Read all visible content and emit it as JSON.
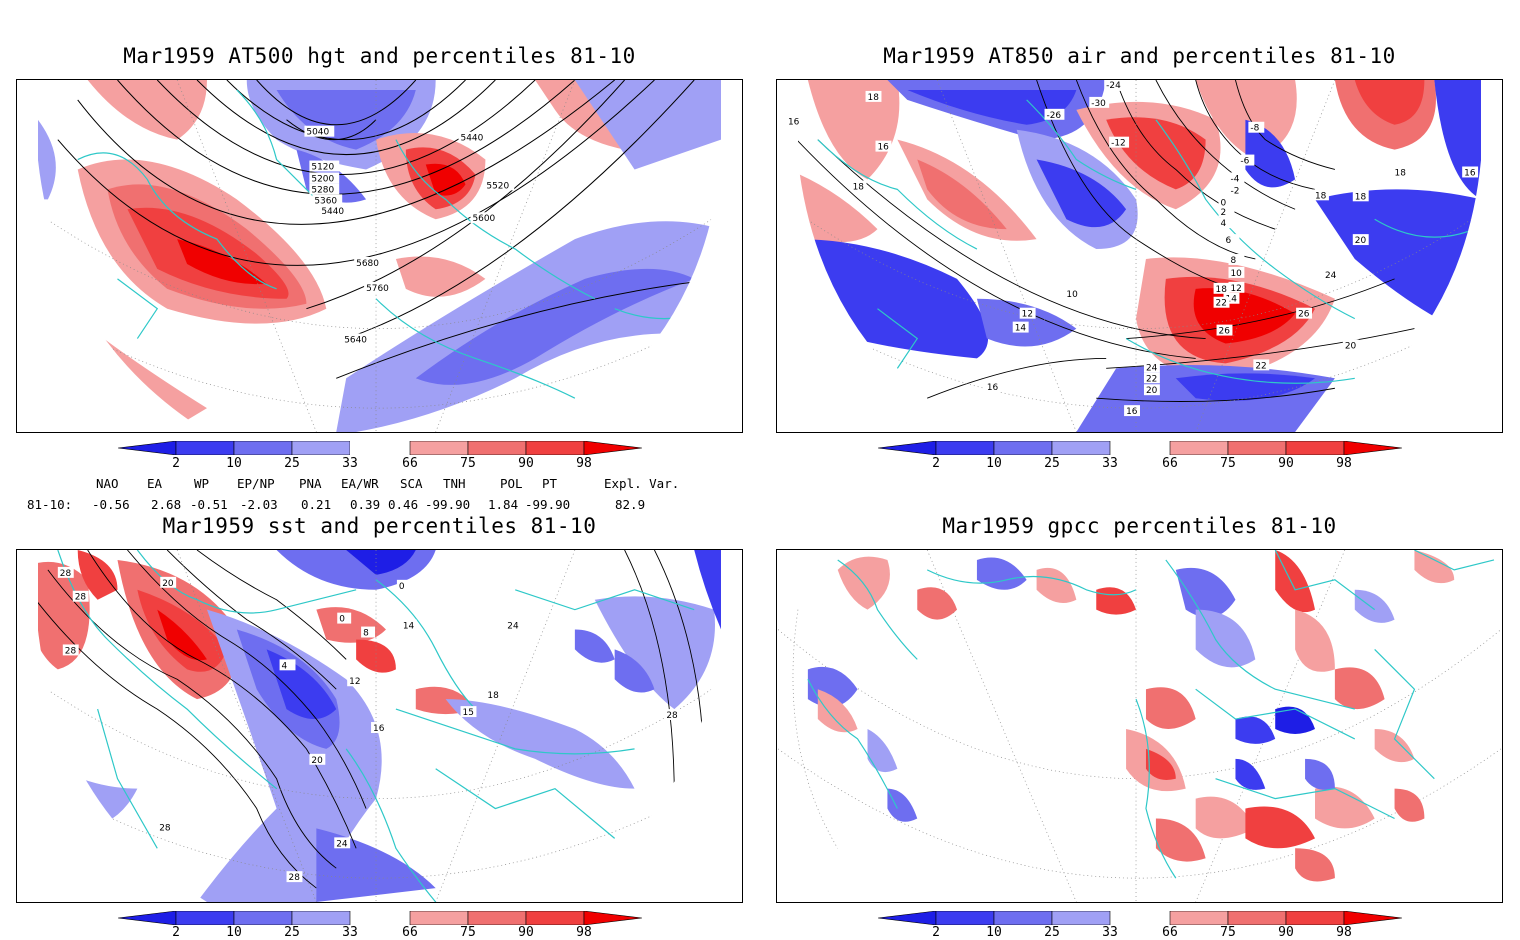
{
  "panels": [
    {
      "id": "hgt500",
      "title": "Mar1959 AT500 hgt and percentiles 81-10",
      "contour_labels": [
        "5040",
        "5440",
        "5120",
        "5200",
        "5280",
        "5360",
        "5440",
        "5520",
        "5600",
        "5680",
        "5760",
        "5640"
      ]
    },
    {
      "id": "air850",
      "title": "Mar1959 AT850 air and percentiles 81-10",
      "contour_labels": [
        "18",
        "16",
        "16",
        "18",
        "-24",
        "-30",
        "-26",
        "-12",
        "-8",
        "-6",
        "-4",
        "-2",
        "0",
        "2",
        "4",
        "6",
        "8",
        "10",
        "12",
        "14",
        "18",
        "22",
        "26",
        "26",
        "24",
        "22",
        "20",
        "20",
        "22",
        "24",
        "20",
        "16",
        "18",
        "18",
        "16",
        "10",
        "12",
        "14",
        "16",
        "18"
      ]
    },
    {
      "id": "sst",
      "title": "Mar1959 sst and percentiles 81-10",
      "contour_labels": [
        "28",
        "28",
        "28",
        "20",
        "4",
        "12",
        "16",
        "20",
        "24",
        "28",
        "0",
        "0",
        "8",
        "14",
        "15",
        "18",
        "24",
        "28",
        "28"
      ]
    },
    {
      "id": "gpcc",
      "title": "Mar1959 gpcc percentiles 81-10",
      "contour_labels": []
    }
  ],
  "colorbar": {
    "labels": [
      "2",
      "10",
      "25",
      "33",
      "66",
      "75",
      "90",
      "98"
    ],
    "colors": {
      "blue_2": "#1e1ee6",
      "blue_10": "#3c3cf0",
      "blue_25": "#6e6ef0",
      "blue_33": "#a0a0f5",
      "red_66": "#f5a0a0",
      "red_75": "#f07070",
      "red_90": "#f04040",
      "red_98": "#f00000"
    }
  },
  "indices": {
    "headers": [
      "NAO",
      "EA",
      "WP",
      "EP/NP",
      "PNA",
      "EA/WR",
      "SCA",
      "TNH",
      "POL",
      "PT",
      "Expl. Var."
    ],
    "row_label": "81-10:",
    "values": [
      "-0.56",
      "2.68",
      "-0.51",
      "-2.03",
      "0.21",
      "0.39",
      "0.46",
      "-99.90",
      "1.84",
      "-99.90",
      "82.9"
    ]
  },
  "map_colors": {
    "coast": "#2ec8c8",
    "grid": "#888888",
    "contour": "#000000"
  }
}
